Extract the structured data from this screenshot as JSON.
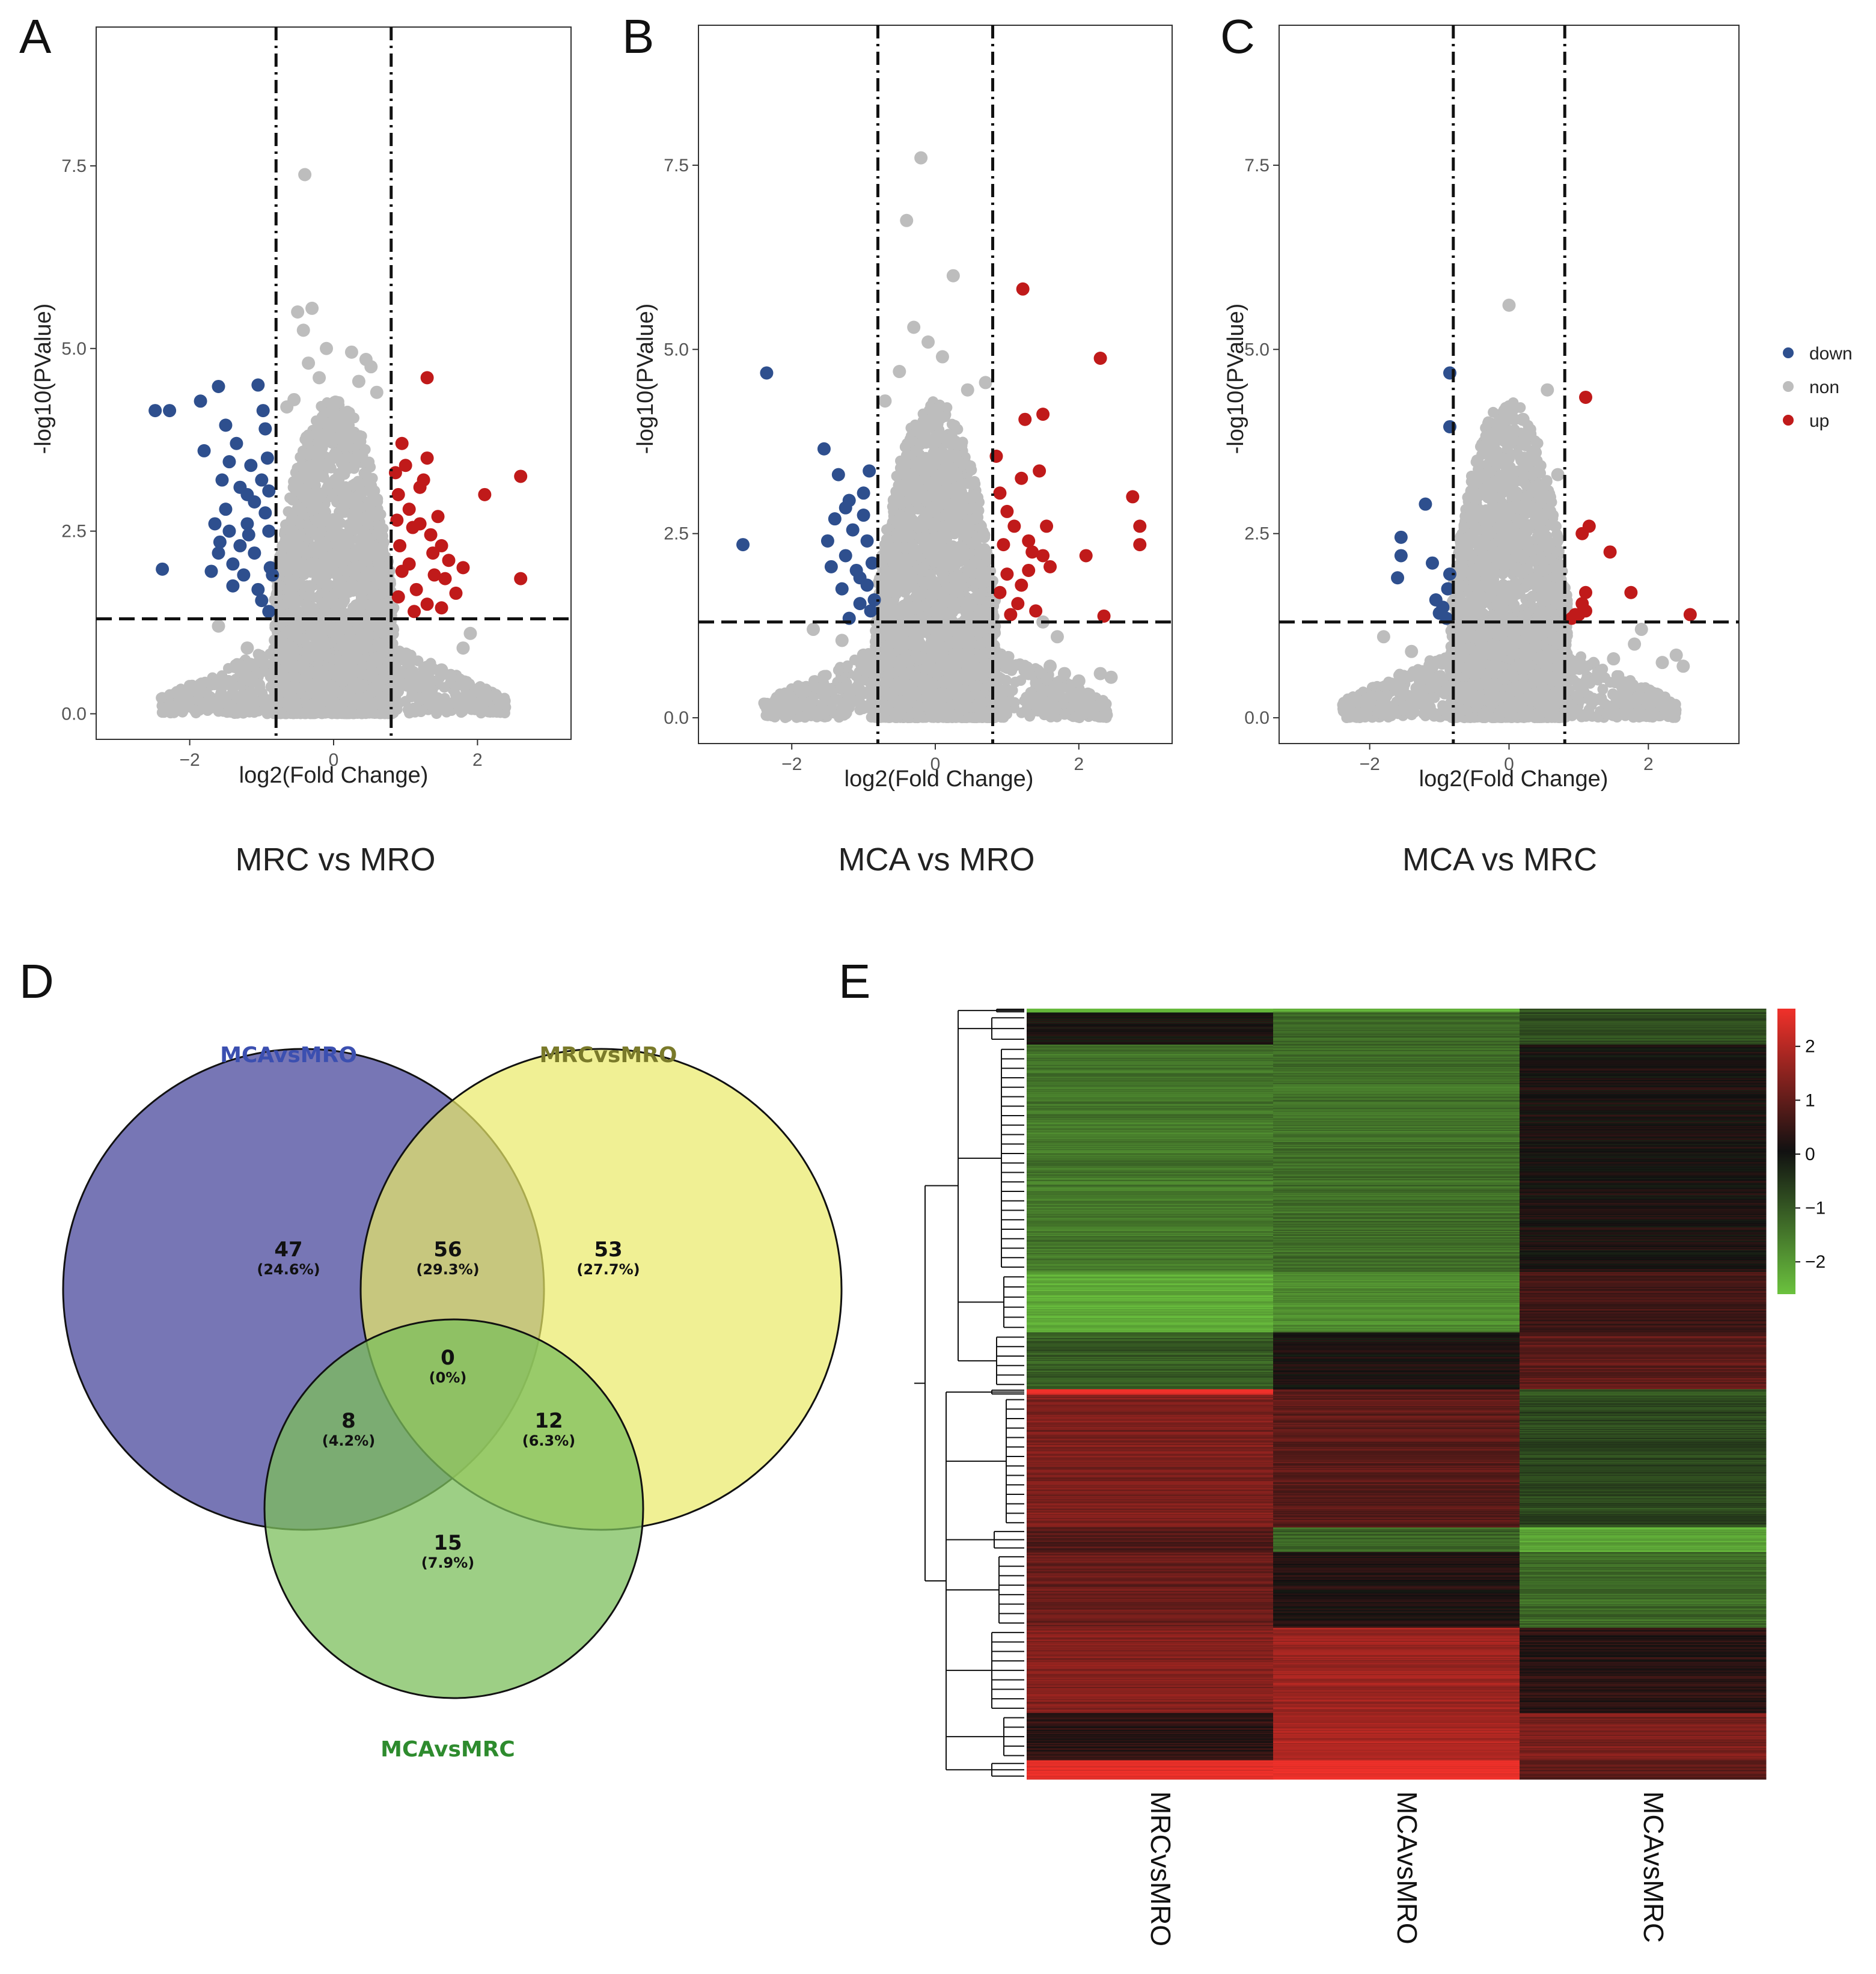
{
  "chart_data": [
    {
      "type": "scatter",
      "panel": "A",
      "caption": "MRC vs MRO",
      "xlabel": "log2(Fold Change)",
      "ylabel": "-log10(PValue)",
      "xlim": [
        -3.3,
        3.3
      ],
      "ylim": [
        -0.35,
        9.4
      ],
      "xticks": [
        -2,
        0,
        2
      ],
      "yticks": [
        0.0,
        2.5,
        5.0,
        7.5
      ],
      "thresholds": {
        "fc": 0.8,
        "p": 1.3
      },
      "series": [
        {
          "name": "down",
          "points": [
            [
              -2.48,
              4.15
            ],
            [
              -2.28,
              4.15
            ],
            [
              -2.38,
              1.98
            ],
            [
              -1.85,
              4.28
            ],
            [
              -1.6,
              4.48
            ],
            [
              -1.8,
              3.6
            ],
            [
              -1.55,
              3.2
            ],
            [
              -1.5,
              2.8
            ],
            [
              -1.45,
              2.5
            ],
            [
              -1.3,
              2.3
            ],
            [
              -1.2,
              2.6
            ],
            [
              -1.15,
              3.4
            ],
            [
              -1.1,
              2.9
            ],
            [
              -1.05,
              4.5
            ],
            [
              -0.95,
              3.9
            ],
            [
              -1.0,
              3.2
            ],
            [
              -0.9,
              2.5
            ],
            [
              -0.88,
              2.0
            ],
            [
              -1.25,
              1.9
            ],
            [
              -1.4,
              1.75
            ],
            [
              -1.6,
              2.2
            ],
            [
              -1.7,
              1.95
            ],
            [
              -1.35,
              3.7
            ],
            [
              -1.0,
              1.55
            ],
            [
              -0.9,
              1.4
            ],
            [
              -1.05,
              1.7
            ],
            [
              -0.92,
              3.5
            ],
            [
              -1.2,
              3.0
            ],
            [
              -1.5,
              3.95
            ],
            [
              -0.95,
              2.75
            ],
            [
              -1.1,
              2.2
            ],
            [
              -1.3,
              3.1
            ],
            [
              -1.65,
              2.6
            ],
            [
              -1.45,
              3.45
            ],
            [
              -0.85,
              1.9
            ],
            [
              -0.98,
              4.15
            ],
            [
              -1.18,
              2.45
            ],
            [
              -1.4,
              2.05
            ],
            [
              -0.9,
              3.05
            ],
            [
              -1.58,
              2.35
            ]
          ]
        },
        {
          "name": "up",
          "points": [
            [
              1.3,
              4.6
            ],
            [
              2.6,
              3.25
            ],
            [
              2.1,
              3.0
            ],
            [
              2.6,
              1.85
            ],
            [
              1.8,
              2.0
            ],
            [
              1.6,
              2.1
            ],
            [
              1.5,
              2.3
            ],
            [
              1.35,
              2.45
            ],
            [
              1.2,
              2.6
            ],
            [
              1.05,
              2.8
            ],
            [
              0.9,
              3.0
            ],
            [
              1.0,
              3.4
            ],
            [
              1.3,
              3.5
            ],
            [
              0.95,
              3.7
            ],
            [
              1.5,
              1.45
            ],
            [
              1.3,
              1.5
            ],
            [
              1.15,
              1.7
            ],
            [
              0.9,
              1.6
            ],
            [
              1.4,
              1.9
            ],
            [
              1.05,
              2.05
            ],
            [
              1.2,
              3.1
            ],
            [
              0.92,
              2.3
            ],
            [
              1.7,
              1.65
            ],
            [
              1.1,
              2.55
            ],
            [
              1.25,
              3.2
            ],
            [
              0.88,
              2.65
            ],
            [
              1.45,
              2.7
            ],
            [
              1.55,
              1.85
            ],
            [
              0.95,
              1.95
            ],
            [
              1.12,
              1.4
            ],
            [
              1.38,
              2.2
            ],
            [
              0.86,
              3.3
            ]
          ]
        },
        {
          "name": "non",
          "points": [
            [
              -0.4,
              7.38
            ],
            [
              -0.5,
              5.5
            ],
            [
              -0.3,
              5.55
            ],
            [
              -0.42,
              5.25
            ],
            [
              -0.1,
              5.0
            ],
            [
              0.25,
              4.95
            ],
            [
              0.45,
              4.85
            ],
            [
              0.52,
              4.75
            ],
            [
              -0.35,
              4.8
            ],
            [
              0.35,
              4.55
            ],
            [
              -0.55,
              4.3
            ],
            [
              -0.65,
              4.2
            ],
            [
              0.6,
              4.4
            ],
            [
              -0.2,
              4.6
            ],
            [
              1.9,
              1.1
            ],
            [
              1.8,
              0.9
            ],
            [
              1.5,
              0.6
            ],
            [
              1.3,
              0.4
            ],
            [
              1.2,
              0.2
            ],
            [
              -1.6,
              1.2
            ],
            [
              -1.2,
              0.9
            ],
            [
              0.95,
              0.8
            ],
            [
              0.85,
              0.5
            ],
            [
              0.7,
              0.2
            ]
          ]
        }
      ]
    },
    {
      "type": "scatter",
      "panel": "B",
      "caption": "MCA vs MRO",
      "xlabel": "log2(Fold Change)",
      "ylabel": "-log10(PValue)",
      "xlim": [
        -3.3,
        3.3
      ],
      "ylim": [
        -0.35,
        9.4
      ],
      "xticks": [
        -2,
        0,
        2
      ],
      "yticks": [
        0.0,
        2.5,
        5.0,
        7.5
      ],
      "thresholds": {
        "fc": 0.8,
        "p": 1.3
      },
      "series": [
        {
          "name": "down",
          "points": [
            [
              -2.35,
              4.68
            ],
            [
              -2.68,
              2.35
            ],
            [
              -1.55,
              3.65
            ],
            [
              -1.35,
              3.3
            ],
            [
              -1.2,
              2.95
            ],
            [
              -1.0,
              3.05
            ],
            [
              -1.4,
              2.7
            ],
            [
              -1.5,
              2.4
            ],
            [
              -1.25,
              2.2
            ],
            [
              -1.1,
              2.0
            ],
            [
              -0.95,
              1.8
            ],
            [
              -1.3,
              1.75
            ],
            [
              -1.05,
              1.55
            ],
            [
              -0.9,
              1.45
            ],
            [
              -1.15,
              2.55
            ],
            [
              -0.95,
              2.4
            ],
            [
              -1.0,
              2.75
            ],
            [
              -0.88,
              2.1
            ],
            [
              -1.2,
              1.35
            ],
            [
              -0.92,
              3.35
            ],
            [
              -1.45,
              2.05
            ],
            [
              -1.05,
              1.9
            ],
            [
              -0.85,
              1.6
            ],
            [
              -1.25,
              2.85
            ]
          ]
        },
        {
          "name": "up",
          "points": [
            [
              1.22,
              5.82
            ],
            [
              2.3,
              4.88
            ],
            [
              1.5,
              4.12
            ],
            [
              1.25,
              4.05
            ],
            [
              2.75,
              3.0
            ],
            [
              1.45,
              3.35
            ],
            [
              1.2,
              3.25
            ],
            [
              2.85,
              2.6
            ],
            [
              2.85,
              2.35
            ],
            [
              2.1,
              2.2
            ],
            [
              1.0,
              2.8
            ],
            [
              0.9,
              3.05
            ],
            [
              0.85,
              3.55
            ],
            [
              1.1,
              2.6
            ],
            [
              1.3,
              2.4
            ],
            [
              1.5,
              2.2
            ],
            [
              1.6,
              2.05
            ],
            [
              1.3,
              2.0
            ],
            [
              1.0,
              1.95
            ],
            [
              0.9,
              1.7
            ],
            [
              1.15,
              1.55
            ],
            [
              1.4,
              1.45
            ],
            [
              2.35,
              1.38
            ],
            [
              1.2,
              1.8
            ],
            [
              0.95,
              2.35
            ],
            [
              1.55,
              2.6
            ],
            [
              1.05,
              1.4
            ],
            [
              1.35,
              2.25
            ]
          ]
        },
        {
          "name": "non",
          "points": [
            [
              -0.2,
              7.6
            ],
            [
              -0.4,
              6.75
            ],
            [
              0.25,
              6.0
            ],
            [
              -0.3,
              5.3
            ],
            [
              -0.1,
              5.1
            ],
            [
              0.1,
              4.9
            ],
            [
              -0.5,
              4.7
            ],
            [
              0.45,
              4.45
            ],
            [
              0.7,
              4.55
            ],
            [
              -0.7,
              4.3
            ],
            [
              2.3,
              0.6
            ],
            [
              2.0,
              0.5
            ],
            [
              2.45,
              0.55
            ],
            [
              1.8,
              0.6
            ],
            [
              1.6,
              0.7
            ],
            [
              1.3,
              0.6
            ],
            [
              -1.7,
              1.2
            ],
            [
              -1.3,
              1.05
            ],
            [
              -1.0,
              0.85
            ],
            [
              1.7,
              1.1
            ],
            [
              1.5,
              1.3
            ]
          ]
        }
      ]
    },
    {
      "type": "scatter",
      "panel": "C",
      "caption": "MCA vs MRC",
      "xlabel": "log2(Fold Change)",
      "ylabel": "-log10(PValue)",
      "xlim": [
        -3.3,
        3.3
      ],
      "ylim": [
        -0.35,
        9.4
      ],
      "xticks": [
        -2,
        0,
        2
      ],
      "yticks": [
        0.0,
        2.5,
        5.0,
        7.5
      ],
      "thresholds": {
        "fc": 0.8,
        "p": 1.3
      },
      "series": [
        {
          "name": "down",
          "points": [
            [
              -0.85,
              4.68
            ],
            [
              -0.85,
              3.95
            ],
            [
              -1.2,
              2.9
            ],
            [
              -1.55,
              2.45
            ],
            [
              -1.55,
              2.2
            ],
            [
              -1.1,
              2.1
            ],
            [
              -0.85,
              1.95
            ],
            [
              -1.6,
              1.9
            ],
            [
              -1.05,
              1.6
            ],
            [
              -0.95,
              1.5
            ],
            [
              -0.9,
              1.35
            ],
            [
              -1.0,
              1.42
            ],
            [
              -0.88,
              1.75
            ]
          ]
        },
        {
          "name": "up",
          "points": [
            [
              1.1,
              4.35
            ],
            [
              1.15,
              2.6
            ],
            [
              1.05,
              2.5
            ],
            [
              1.45,
              2.25
            ],
            [
              1.75,
              1.7
            ],
            [
              1.1,
              1.7
            ],
            [
              1.05,
              1.55
            ],
            [
              1.0,
              1.4
            ],
            [
              0.9,
              1.35
            ],
            [
              2.6,
              1.4
            ],
            [
              1.1,
              1.45
            ],
            [
              0.95,
              1.4
            ]
          ]
        },
        {
          "name": "non",
          "points": [
            [
              0.0,
              5.6
            ],
            [
              0.55,
              4.45
            ],
            [
              0.2,
              4.05
            ],
            [
              -0.1,
              4.0
            ],
            [
              0.3,
              3.85
            ],
            [
              0.7,
              3.3
            ],
            [
              2.2,
              0.75
            ],
            [
              2.5,
              0.7
            ],
            [
              2.4,
              0.85
            ],
            [
              1.9,
              1.2
            ],
            [
              1.8,
              1.0
            ],
            [
              1.5,
              0.8
            ],
            [
              -1.8,
              1.1
            ],
            [
              -1.4,
              0.9
            ],
            [
              -1.1,
              0.7
            ]
          ]
        }
      ]
    }
  ],
  "legend": {
    "items": [
      {
        "label": "down",
        "color": "#2E4F8E"
      },
      {
        "label": "non",
        "color": "#BDBDBD"
      },
      {
        "label": "up",
        "color": "#C01A1A"
      }
    ]
  },
  "venn": {
    "letter": "D",
    "sets": [
      {
        "label": "MCAvsMRO",
        "fill": "#5F5EA8",
        "title_color": "#3B4FB0"
      },
      {
        "label": "MRCvsMRO",
        "fill": "#E9EA66",
        "title_color": "#7A7A2A"
      },
      {
        "label": "MCAvsMRC",
        "fill": "#7CBF5C",
        "title_color": "#2E8B2E"
      }
    ],
    "regions": [
      {
        "count": "47",
        "pct": "(24.6%)"
      },
      {
        "count": "56",
        "pct": "(29.3%)"
      },
      {
        "count": "53",
        "pct": "(27.7%)"
      },
      {
        "count": "0",
        "pct": "(0%)"
      },
      {
        "count": "8",
        "pct": "(4.2%)"
      },
      {
        "count": "12",
        "pct": "(6.3%)"
      },
      {
        "count": "15",
        "pct": "(7.9%)"
      }
    ]
  },
  "heatmap": {
    "letter": "E",
    "columns": [
      "MRCvsMRO",
      "MCAvsMRO",
      "MCAvsMRC"
    ],
    "colorbar_ticks": [
      "2",
      "1",
      "0",
      "−1",
      "−2"
    ],
    "colorbar_range": [
      -2.6,
      2.7
    ],
    "blocks": [
      {
        "rows": 4,
        "values": [
          -2.4,
          -2.3,
          -1.0
        ]
      },
      {
        "rows": 34,
        "values": [
          0.05,
          -1.3,
          -0.9
        ]
      },
      {
        "rows": 240,
        "values": [
          -1.5,
          -1.4,
          0.1
        ]
      },
      {
        "rows": 64,
        "values": [
          -2.3,
          -1.8,
          0.6
        ]
      },
      {
        "rows": 60,
        "values": [
          -1.1,
          0.1,
          0.9
        ]
      },
      {
        "rows": 6,
        "values": [
          2.7,
          0.9,
          -1.0
        ]
      },
      {
        "rows": 140,
        "values": [
          1.3,
          0.9,
          -0.8
        ]
      },
      {
        "rows": 26,
        "values": [
          0.8,
          -1.2,
          -2.2
        ]
      },
      {
        "rows": 80,
        "values": [
          1.1,
          0.2,
          -1.3
        ]
      },
      {
        "rows": 90,
        "values": [
          1.4,
          1.7,
          0.3
        ]
      },
      {
        "rows": 50,
        "values": [
          0.3,
          1.9,
          1.3
        ]
      },
      {
        "rows": 20,
        "values": [
          2.6,
          2.7,
          0.9
        ]
      }
    ]
  }
}
